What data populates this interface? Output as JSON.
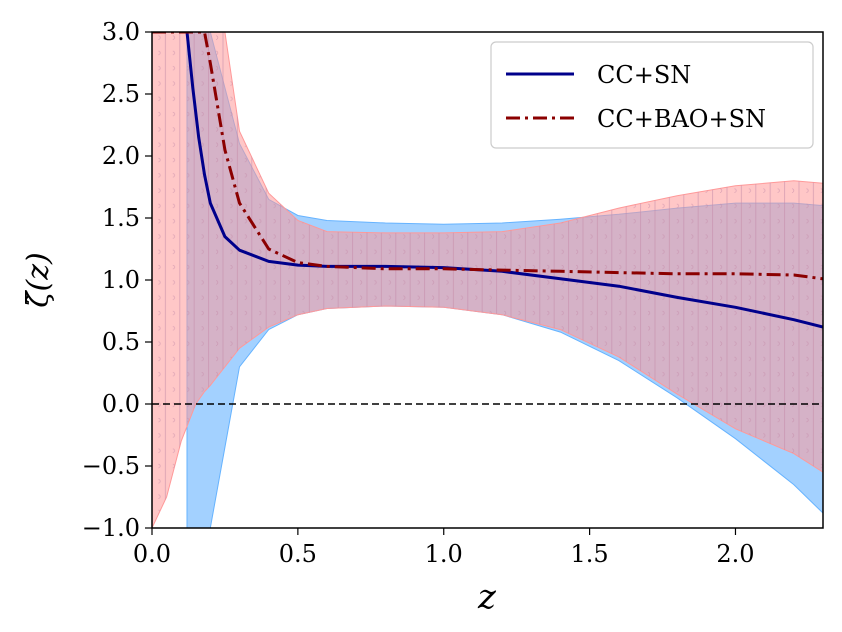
{
  "chart_data": {
    "type": "line",
    "title": "",
    "xlabel": "z",
    "ylabel": "ζ̃(z)",
    "xlim": [
      0.0,
      2.3
    ],
    "ylim": [
      -1.0,
      3.0
    ],
    "xticks": [
      "0.0",
      "0.5",
      "1.0",
      "1.5",
      "2.0"
    ],
    "xtick_values": [
      0.0,
      0.5,
      1.0,
      1.5,
      2.0
    ],
    "yticks": [
      "−1.0",
      "−0.5",
      "0.0",
      "0.5",
      "1.0",
      "1.5",
      "2.0",
      "2.5",
      "3.0"
    ],
    "ytick_values": [
      -1.0,
      -0.5,
      0.0,
      0.5,
      1.0,
      1.5,
      2.0,
      2.5,
      3.0
    ],
    "reference_line": {
      "y": 0.0,
      "style": "dashed",
      "color": "#000000"
    },
    "legend_position": "top-right",
    "series": [
      {
        "name": "CC+SN",
        "color": "#00008b",
        "style": "solid",
        "band_color": "#66b3ff",
        "x": [
          0.12,
          0.14,
          0.16,
          0.18,
          0.2,
          0.25,
          0.3,
          0.4,
          0.5,
          0.6,
          0.8,
          1.0,
          1.2,
          1.4,
          1.6,
          1.8,
          2.0,
          2.2,
          2.3
        ],
        "y": [
          3.0,
          2.55,
          2.15,
          1.85,
          1.62,
          1.35,
          1.24,
          1.15,
          1.12,
          1.11,
          1.11,
          1.1,
          1.07,
          1.01,
          0.95,
          0.86,
          0.78,
          0.68,
          0.62
        ],
        "upper": [
          3.0,
          3.0,
          3.0,
          3.0,
          3.0,
          2.55,
          2.1,
          1.65,
          1.52,
          1.48,
          1.46,
          1.45,
          1.46,
          1.49,
          1.53,
          1.58,
          1.62,
          1.62,
          1.6
        ],
        "lower": [
          -1.0,
          -1.0,
          -1.0,
          -1.0,
          -1.0,
          -0.35,
          0.3,
          0.6,
          0.72,
          0.77,
          0.79,
          0.78,
          0.72,
          0.58,
          0.35,
          0.05,
          -0.28,
          -0.65,
          -0.88
        ]
      },
      {
        "name": "CC+BAO+SN",
        "color": "#8b0000",
        "style": "dashdot",
        "band_color": "#ff9999",
        "x": [
          0.0,
          0.05,
          0.1,
          0.15,
          0.18,
          0.2,
          0.25,
          0.3,
          0.4,
          0.5,
          0.6,
          0.8,
          1.0,
          1.2,
          1.4,
          1.6,
          1.8,
          2.0,
          2.2,
          2.3
        ],
        "y": [
          3.0,
          3.0,
          3.0,
          3.0,
          3.0,
          2.75,
          2.05,
          1.62,
          1.25,
          1.14,
          1.11,
          1.09,
          1.09,
          1.08,
          1.07,
          1.06,
          1.05,
          1.05,
          1.04,
          1.01
        ],
        "upper": [
          3.0,
          3.0,
          3.0,
          3.0,
          3.0,
          3.0,
          3.0,
          2.2,
          1.7,
          1.48,
          1.39,
          1.38,
          1.38,
          1.39,
          1.46,
          1.58,
          1.68,
          1.76,
          1.8,
          1.78
        ],
        "lower": [
          -1.0,
          -0.75,
          -0.3,
          0.0,
          0.1,
          0.15,
          0.3,
          0.45,
          0.62,
          0.72,
          0.77,
          0.79,
          0.78,
          0.72,
          0.6,
          0.38,
          0.08,
          -0.2,
          -0.4,
          -0.55
        ]
      }
    ]
  }
}
